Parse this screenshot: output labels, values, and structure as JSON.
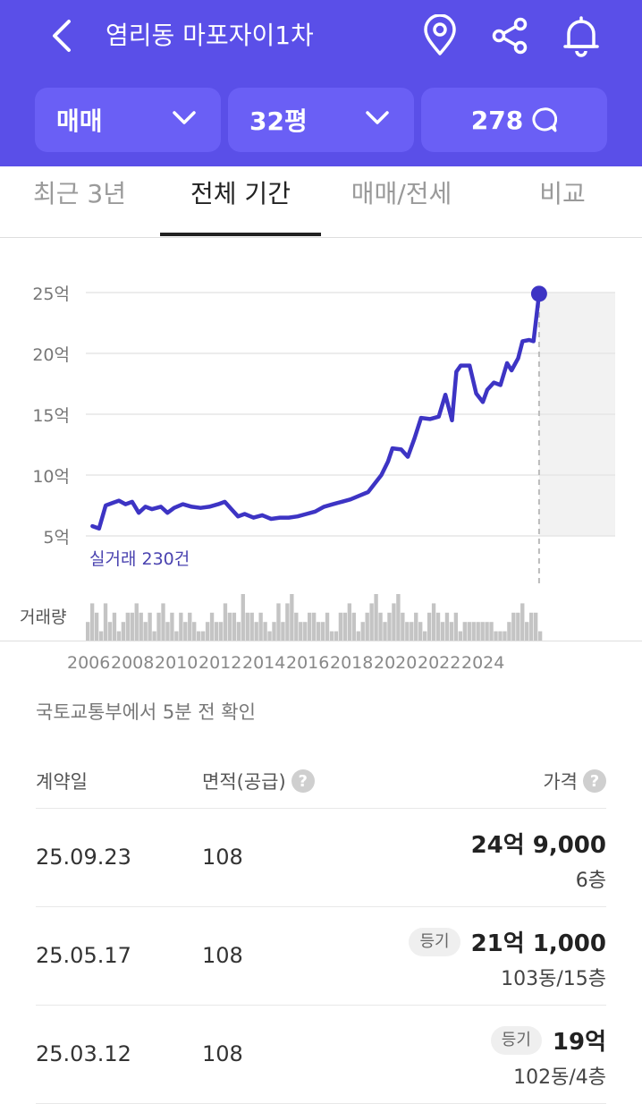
{
  "header": {
    "title": "염리동 마포자이1차",
    "chips": [
      {
        "label": "매매"
      },
      {
        "label": "32평"
      }
    ],
    "comments_count": "278"
  },
  "tabs": [
    "최근 3년",
    "전체 기간",
    "매매/전세",
    "비교"
  ],
  "active_tab": "전체 기간",
  "chart_data": {
    "type": "line",
    "ylabels": [
      "25억",
      "20억",
      "15억",
      "10억",
      "5억"
    ],
    "ylim": [
      5,
      25
    ],
    "annotation": "실거래 230건",
    "volume_label": "거래량",
    "x_ticks": [
      "2006",
      "2008",
      "2010",
      "2012",
      "2014",
      "2016",
      "2018",
      "2020",
      "2022",
      "2024"
    ],
    "series": [
      {
        "color": "#3d34c4",
        "points": [
          [
            2005.3,
            5.8
          ],
          [
            2005.6,
            5.6
          ],
          [
            2005.9,
            7.5
          ],
          [
            2006.2,
            7.7
          ],
          [
            2006.5,
            7.9
          ],
          [
            2006.8,
            7.6
          ],
          [
            2007.1,
            7.8
          ],
          [
            2007.4,
            6.9
          ],
          [
            2007.7,
            7.4
          ],
          [
            2008.0,
            7.2
          ],
          [
            2008.4,
            7.4
          ],
          [
            2008.7,
            6.9
          ],
          [
            2009.0,
            7.3
          ],
          [
            2009.4,
            7.6
          ],
          [
            2009.8,
            7.4
          ],
          [
            2010.2,
            7.3
          ],
          [
            2010.6,
            7.4
          ],
          [
            2011.0,
            7.6
          ],
          [
            2011.3,
            7.8
          ],
          [
            2011.6,
            7.2
          ],
          [
            2011.9,
            6.6
          ],
          [
            2012.2,
            6.8
          ],
          [
            2012.6,
            6.5
          ],
          [
            2013.0,
            6.7
          ],
          [
            2013.4,
            6.4
          ],
          [
            2013.8,
            6.5
          ],
          [
            2014.2,
            6.5
          ],
          [
            2014.6,
            6.6
          ],
          [
            2015.0,
            6.8
          ],
          [
            2015.4,
            7.0
          ],
          [
            2015.8,
            7.4
          ],
          [
            2016.2,
            7.6
          ],
          [
            2016.6,
            7.8
          ],
          [
            2017.0,
            8.0
          ],
          [
            2017.4,
            8.3
          ],
          [
            2017.8,
            8.6
          ],
          [
            2018.1,
            9.3
          ],
          [
            2018.4,
            10.0
          ],
          [
            2018.7,
            11.1
          ],
          [
            2018.9,
            12.2
          ],
          [
            2019.3,
            12.1
          ],
          [
            2019.6,
            11.5
          ],
          [
            2019.9,
            13.0
          ],
          [
            2020.2,
            14.7
          ],
          [
            2020.6,
            14.6
          ],
          [
            2021.0,
            14.8
          ],
          [
            2021.3,
            16.6
          ],
          [
            2021.6,
            14.5
          ],
          [
            2021.8,
            18.5
          ],
          [
            2022.0,
            19.0
          ],
          [
            2022.4,
            19.0
          ],
          [
            2022.7,
            16.7
          ],
          [
            2023.0,
            16.0
          ],
          [
            2023.2,
            17.0
          ],
          [
            2023.5,
            17.6
          ],
          [
            2023.8,
            17.4
          ],
          [
            2024.1,
            19.2
          ],
          [
            2024.3,
            18.6
          ],
          [
            2024.6,
            19.6
          ],
          [
            2024.8,
            21.0
          ],
          [
            2025.1,
            21.1
          ],
          [
            2025.3,
            21.0
          ],
          [
            2025.55,
            24.9
          ]
        ]
      }
    ],
    "volume": [
      2,
      4,
      3,
      1,
      4,
      2,
      3,
      1,
      2,
      3,
      3,
      4,
      3,
      2,
      3,
      1,
      3,
      4,
      2,
      3,
      1,
      3,
      2,
      3,
      2,
      1,
      1,
      2,
      3,
      2,
      2,
      4,
      3,
      3,
      2,
      5,
      3,
      3,
      2,
      3,
      2,
      1,
      2,
      4,
      2,
      4,
      5,
      3,
      2,
      2,
      3,
      3,
      2,
      2,
      3,
      1,
      1,
      3,
      3,
      4,
      3,
      1,
      2,
      3,
      4,
      5,
      3,
      2,
      3,
      4,
      5,
      3,
      2,
      2,
      3,
      2,
      1,
      3,
      4,
      3,
      2,
      3,
      2,
      3,
      1,
      2,
      2,
      2,
      2,
      2,
      2,
      2,
      1,
      1,
      1,
      2,
      3,
      3,
      4,
      2,
      3,
      3,
      1
    ]
  },
  "source_text": "국토교통부에서 5분 전 확인",
  "table": {
    "columns": [
      "계약일",
      "면적(공급)",
      "가격"
    ],
    "rows": [
      {
        "date": "25.09.23",
        "area": "108",
        "badge": "",
        "price": "24억 9,000",
        "floor": "6층"
      },
      {
        "date": "25.05.17",
        "area": "108",
        "badge": "등기",
        "price": "21억 1,000",
        "floor": "103동/15층"
      },
      {
        "date": "25.03.12",
        "area": "108",
        "badge": "등기",
        "price": "19억",
        "floor": "102동/4층"
      }
    ]
  },
  "colors": {
    "header_bg": "#5a4fe8",
    "chip_bg": "#6a5ff5",
    "line": "#3d34c4",
    "volume_bar": "#c4c4c4"
  }
}
